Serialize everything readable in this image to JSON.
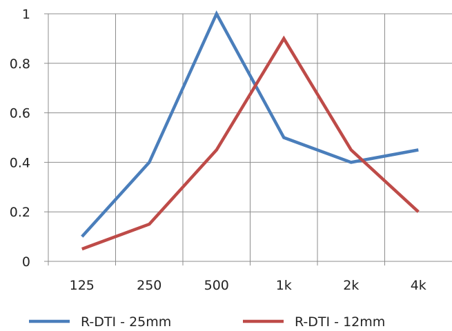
{
  "chart_data": {
    "type": "line",
    "categories": [
      "125",
      "250",
      "500",
      "1k",
      "2k",
      "4k"
    ],
    "series": [
      {
        "name": "R-DTI - 25mm",
        "color": "#4a7ebb",
        "values": [
          0.1,
          0.4,
          1.0,
          0.5,
          0.4,
          0.45
        ]
      },
      {
        "name": "R-DTI - 12mm",
        "color": "#be4b48",
        "values": [
          0.05,
          0.15,
          0.45,
          0.9,
          0.45,
          0.2
        ]
      }
    ],
    "yticks": [
      "0",
      "0.2",
      "0.4",
      "0.6",
      "0.8",
      "1"
    ],
    "ylim": [
      0,
      1
    ],
    "grid": true,
    "legend_position": "bottom",
    "gridline_color": "#8c8c8c"
  }
}
